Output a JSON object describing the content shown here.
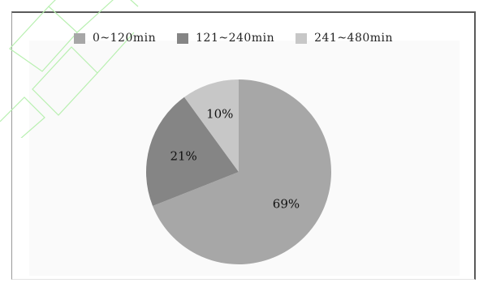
{
  "chart_data": {
    "type": "pie",
    "title": "",
    "categories": [
      "0~120min",
      "121~240min",
      "241~480min"
    ],
    "values": [
      69,
      21,
      10
    ],
    "labels": [
      "69%",
      "21%",
      "10%"
    ],
    "colors": [
      "#a7a7a7",
      "#858585",
      "#c7c7c7"
    ],
    "legend_position": "top",
    "start_angle": "12 o'clock",
    "direction": "clockwise"
  }
}
